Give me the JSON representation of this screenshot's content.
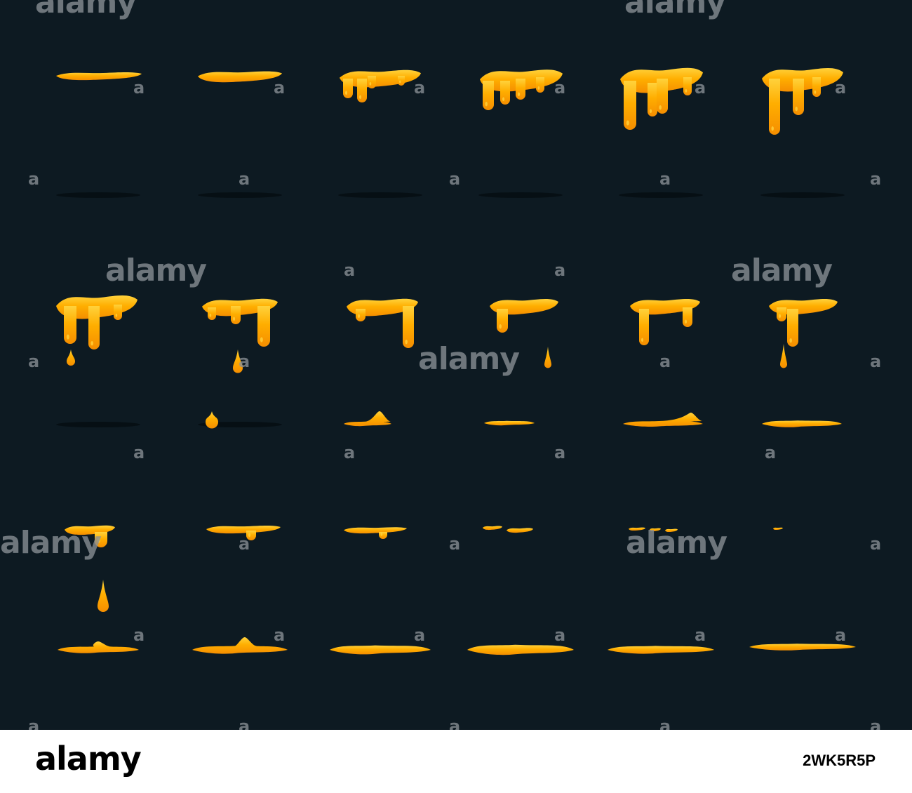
{
  "image": {
    "background_color": "#0d1a22",
    "liquid_color": "#ffae00",
    "liquid_highlight": "#ffd23c",
    "liquid_shade": "#f58e00",
    "shadow_color": "#060e13",
    "frame_rows": 3,
    "frame_columns": 6
  },
  "watermark": {
    "brand": "alamy",
    "small_letter": "a"
  },
  "footer": {
    "logo": "alamy",
    "image_id": "2WK5R5P"
  }
}
